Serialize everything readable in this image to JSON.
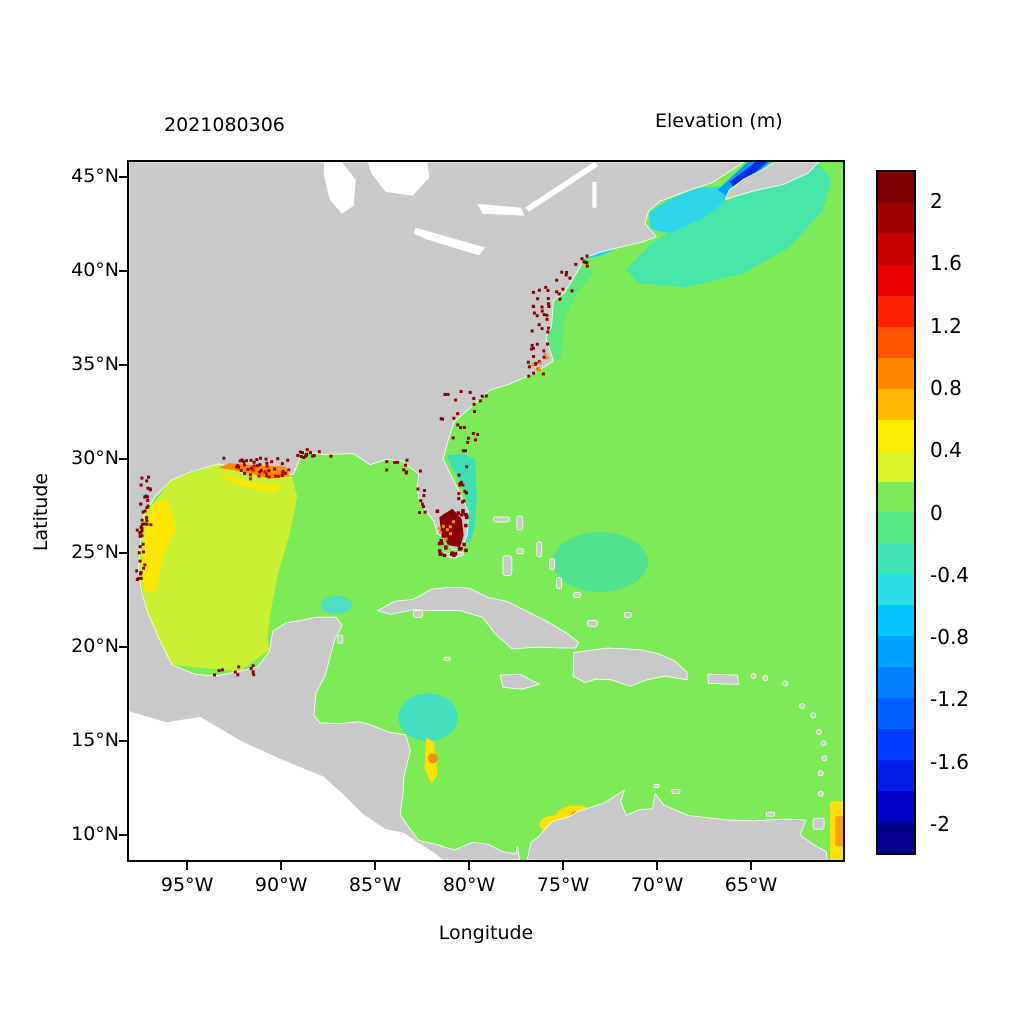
{
  "figure": {
    "left_title": "2021080306",
    "right_title": "Elevation (m)",
    "xlabel": "Longitude",
    "ylabel": "Latitude"
  },
  "chart_data": {
    "type": "heatmap",
    "title": "2021080306",
    "colorbar_label": "Elevation (m)",
    "xlabel": "Longitude",
    "ylabel": "Latitude",
    "map_domain": {
      "lon_west": 98.2,
      "lon_east": 60.0,
      "lat_north": 45.9,
      "lat_south": 8.56
    },
    "x_ticks": [
      {
        "label": "95°W",
        "lon": 95
      },
      {
        "label": "90°W",
        "lon": 90
      },
      {
        "label": "85°W",
        "lon": 85
      },
      {
        "label": "80°W",
        "lon": 80
      },
      {
        "label": "75°W",
        "lon": 75
      },
      {
        "label": "70°W",
        "lon": 70
      },
      {
        "label": "65°W",
        "lon": 65
      }
    ],
    "y_ticks": [
      {
        "label": "45°N",
        "lat": 45
      },
      {
        "label": "40°N",
        "lat": 40
      },
      {
        "label": "35°N",
        "lat": 35
      },
      {
        "label": "30°N",
        "lat": 30
      },
      {
        "label": "25°N",
        "lat": 25
      },
      {
        "label": "20°N",
        "lat": 20
      },
      {
        "label": "15°N",
        "lat": 15
      },
      {
        "label": "10°N",
        "lat": 10
      }
    ],
    "colorbar": {
      "unit": "m",
      "min": -2.2,
      "max": 2.2,
      "ticks": [
        {
          "label": "2",
          "value": 2
        },
        {
          "label": "1.6",
          "value": 1.6
        },
        {
          "label": "1.2",
          "value": 1.2
        },
        {
          "label": "0.8",
          "value": 0.8
        },
        {
          "label": "0.4",
          "value": 0.4
        },
        {
          "label": "0",
          "value": 0
        },
        {
          "label": "-0.4",
          "value": -0.4
        },
        {
          "label": "-0.8",
          "value": -0.8
        },
        {
          "label": "-1.2",
          "value": -1.2
        },
        {
          "label": "-1.6",
          "value": -1.6
        },
        {
          "label": "-2",
          "value": -2
        }
      ],
      "levels": [
        {
          "from": 2.0,
          "to": 2.2,
          "color": "#7F0000"
        },
        {
          "from": 1.8,
          "to": 2.0,
          "color": "#A10000"
        },
        {
          "from": 1.6,
          "to": 1.8,
          "color": "#C80000"
        },
        {
          "from": 1.4,
          "to": 1.6,
          "color": "#EB0000"
        },
        {
          "from": 1.2,
          "to": 1.4,
          "color": "#FF2200"
        },
        {
          "from": 1.0,
          "to": 1.2,
          "color": "#FF5500"
        },
        {
          "from": 0.8,
          "to": 1.0,
          "color": "#FF8700"
        },
        {
          "from": 0.6,
          "to": 0.8,
          "color": "#FFBA00"
        },
        {
          "from": 0.4,
          "to": 0.6,
          "color": "#FFEC00"
        },
        {
          "from": 0.2,
          "to": 0.4,
          "color": "#DCF32A"
        },
        {
          "from": 0.0,
          "to": 0.2,
          "color": "#7CEB57"
        },
        {
          "from": -0.2,
          "to": 0.0,
          "color": "#55E584"
        },
        {
          "from": -0.4,
          "to": -0.2,
          "color": "#3FE3B4"
        },
        {
          "from": -0.6,
          "to": -0.4,
          "color": "#2ADFE3"
        },
        {
          "from": -0.8,
          "to": -0.6,
          "color": "#00C3FF"
        },
        {
          "from": -1.0,
          "to": -0.8,
          "color": "#00A2FF"
        },
        {
          "from": -1.2,
          "to": -1.0,
          "color": "#0081FF"
        },
        {
          "from": -1.4,
          "to": -1.2,
          "color": "#0060FF"
        },
        {
          "from": -1.6,
          "to": -1.4,
          "color": "#003FFF"
        },
        {
          "from": -1.8,
          "to": -1.6,
          "color": "#001EE8"
        },
        {
          "from": -2.0,
          "to": -1.8,
          "color": "#0000C8"
        },
        {
          "from": -2.2,
          "to": -2.0,
          "color": "#00008B"
        }
      ]
    },
    "map_colors": {
      "land": "#C9C9C9",
      "lakes": "#FFFFFF",
      "no_data": "#FFFFFF",
      "ocean_background": "#7CEB57",
      "coast_outline": "#FFFFFF"
    },
    "regions": [
      {
        "name": "western-gulf-of-mexico",
        "approx_value_m": 0.3,
        "color": "#C9F032"
      },
      {
        "name": "texas-coast-band",
        "approx_value_m": 0.5,
        "color": "#FFE600"
      },
      {
        "name": "new-england-scotian-shelf",
        "approx_value_m": -0.3,
        "color": "#45E6A8"
      },
      {
        "name": "gulf-of-maine",
        "approx_value_m": -0.6,
        "color": "#2FD5E8"
      },
      {
        "name": "bay-of-fundy-outer",
        "approx_value_m": -1.0,
        "color": "#00A2FF"
      },
      {
        "name": "bay-of-fundy-inner",
        "approx_value_m": -1.6,
        "color": "#0030E0"
      },
      {
        "name": "long-island-sound",
        "approx_value_m": -0.7,
        "color": "#20CFEF"
      },
      {
        "name": "mid-atlantic-bight",
        "approx_value_m": -0.1,
        "color": "#5FE87E"
      },
      {
        "name": "florida-east-coast-band",
        "approx_value_m": -0.3,
        "color": "#3EDFB6"
      },
      {
        "name": "turks-caicos-patch",
        "approx_value_m": -0.2,
        "color": "#52E18F"
      },
      {
        "name": "yucatan-shelf-spot",
        "approx_value_m": -0.4,
        "color": "#4ADFC2"
      },
      {
        "name": "honduras-shelf-patch",
        "approx_value_m": -0.4,
        "color": "#43E0C0"
      },
      {
        "name": "nicaragua-rise-streak",
        "approx_value_m": 0.5,
        "color": "#FFE100"
      },
      {
        "name": "nicaragua-rise-core",
        "approx_value_m": 0.9,
        "color": "#FF8C00"
      },
      {
        "name": "santa-marta-spot",
        "approx_value_m": 0.5,
        "color": "#FFE100"
      },
      {
        "name": "santa-marta-core",
        "approx_value_m": 0.9,
        "color": "#FF9000"
      },
      {
        "name": "cartagena-spot",
        "approx_value_m": 0.5,
        "color": "#FFE100"
      },
      {
        "name": "orinoco-edge-strip",
        "approx_value_m": 0.5,
        "color": "#FFE100"
      },
      {
        "name": "orinoco-edge-core",
        "approx_value_m": 0.8,
        "color": "#FFA000"
      },
      {
        "name": "louisiana-coast-band",
        "approx_value_m": 1.0,
        "color": "#FF8C00"
      },
      {
        "name": "louisiana-coast-fringe",
        "approx_value_m": 0.5,
        "color": "#FFE600"
      },
      {
        "name": "south-florida-surge-blob",
        "approx_value_m": 2.2,
        "color": "#8B0000"
      }
    ],
    "speckle_clusters": [
      {
        "name": "texas-coast",
        "lon": 97.3,
        "dlon": 0.3,
        "lat": 27.6,
        "dlat": 1.5,
        "n": 26,
        "color": "#8B0000",
        "size": 3
      },
      {
        "name": "tamaulipas-coast",
        "lon": 97.55,
        "dlon": 0.25,
        "lat": 24.7,
        "dlat": 1.7,
        "n": 20,
        "color": "#8B0000",
        "size": 3
      },
      {
        "name": "louisiana-coast",
        "lon": 91.3,
        "dlon": 1.9,
        "lat": 29.6,
        "dlat": 0.5,
        "n": 34,
        "color": "#8B0000",
        "size": 3
      },
      {
        "name": "louisiana-coast-red",
        "lon": 91.0,
        "dlon": 1.5,
        "lat": 29.3,
        "dlat": 0.35,
        "n": 12,
        "color": "#E00000",
        "size": 3
      },
      {
        "name": "mississippi-alabama-coast",
        "lon": 88.2,
        "dlon": 1.3,
        "lat": 30.3,
        "dlat": 0.25,
        "n": 14,
        "color": "#8B0000",
        "size": 3
      },
      {
        "name": "florida-big-bend",
        "lon": 83.5,
        "dlon": 1.0,
        "lat": 29.7,
        "dlat": 0.45,
        "n": 10,
        "color": "#8B0000",
        "size": 3
      },
      {
        "name": "tampa-bay",
        "lon": 82.6,
        "dlon": 0.3,
        "lat": 27.8,
        "dlat": 0.7,
        "n": 8,
        "color": "#8B0000",
        "size": 3
      },
      {
        "name": "south-florida",
        "lon": 80.9,
        "dlon": 0.8,
        "lat": 26.1,
        "dlat": 1.3,
        "n": 40,
        "color": "#8B0000",
        "size": 3.5
      },
      {
        "name": "south-florida-orange",
        "lon": 81.1,
        "dlon": 0.6,
        "lat": 25.9,
        "dlat": 1.0,
        "n": 8,
        "color": "#FF8C00",
        "size": 3
      },
      {
        "name": "florida-east-coast",
        "lon": 80.35,
        "dlon": 0.25,
        "lat": 28.7,
        "dlat": 1.9,
        "n": 16,
        "color": "#8B0000",
        "size": 3
      },
      {
        "name": "georgia-carolina-coast",
        "lon": 80.2,
        "dlon": 1.4,
        "lat": 32.3,
        "dlat": 1.5,
        "n": 24,
        "color": "#8B0000",
        "size": 3
      },
      {
        "name": "pamlico-sound",
        "lon": 76.3,
        "dlon": 0.8,
        "lat": 35.3,
        "dlat": 0.9,
        "n": 18,
        "color": "#8B0000",
        "size": 3
      },
      {
        "name": "pamlico-orange",
        "lon": 76.4,
        "dlon": 0.6,
        "lat": 35.2,
        "dlat": 0.7,
        "n": 6,
        "color": "#FF8C00",
        "size": 3
      },
      {
        "name": "chesapeake-bay",
        "lon": 76.2,
        "dlon": 0.5,
        "lat": 38.2,
        "dlat": 1.4,
        "n": 22,
        "color": "#8B0000",
        "size": 3
      },
      {
        "name": "delaware-new-jersey",
        "lon": 74.9,
        "dlon": 0.45,
        "lat": 39.3,
        "dlat": 0.8,
        "n": 10,
        "color": "#8B0000",
        "size": 3
      },
      {
        "name": "new-york-harbor",
        "lon": 73.9,
        "dlon": 0.5,
        "lat": 40.6,
        "dlat": 0.3,
        "n": 7,
        "color": "#8B0000",
        "size": 3
      },
      {
        "name": "campeche-coast",
        "lon": 92.6,
        "dlon": 1.6,
        "lat": 18.75,
        "dlat": 0.3,
        "n": 10,
        "color": "#8B0000",
        "size": 3
      }
    ]
  }
}
